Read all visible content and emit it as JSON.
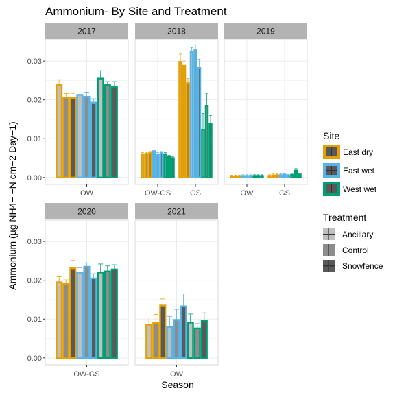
{
  "chart_data": {
    "type": "bar",
    "title": "Ammonium- By Site and Treatment",
    "xlabel": "Season",
    "ylabel": "Ammonium (µg NH4+ −N cm−2 Day−1)",
    "ylim": [
      -0.0018,
      0.0355
    ],
    "yticks": [
      0.0,
      0.01,
      0.02,
      0.03
    ],
    "ytick_labels": [
      "0.00",
      "0.01",
      "0.02",
      "0.03"
    ],
    "sites": [
      "East dry",
      "East wet",
      "West wet"
    ],
    "treatments": [
      "Ancillary",
      "Control",
      "Snowfence"
    ],
    "legend": {
      "site_title": "Site",
      "treatment_title": "Treatment",
      "site_colors": [
        "#E69F00",
        "#56B4E9",
        "#009E73"
      ],
      "treatment_fills": [
        "#bfbfbf",
        "#8c8c8c",
        "#595959"
      ]
    },
    "panels": [
      {
        "label": "2017",
        "seasons": [
          "OW"
        ],
        "values": [
          [
            [
              0.024,
              0.0208,
              0.0207
            ],
            [
              0.0215,
              0.021,
              0.0195
            ],
            [
              0.0257,
              0.024,
              0.0235
            ]
          ]
        ],
        "errors": [
          [
            [
              0.0012,
              0.0008,
              0.001
            ],
            [
              0.0008,
              0.001,
              0.0008
            ],
            [
              0.0018,
              0.0007,
              0.0012
            ]
          ]
        ]
      },
      {
        "label": "2018",
        "seasons": [
          "OW-GS",
          "GS"
        ],
        "values": [
          [
            [
              0.0062,
              0.0063,
              0.0065
            ],
            [
              0.007,
              0.0061,
              0.0065
            ],
            [
              0.0062,
              0.0055,
              0.0052
            ]
          ],
          [
            [
              0.03,
              0.029,
              0.0245
            ],
            [
              0.0325,
              0.033,
              0.0285
            ],
            [
              0.0125,
              0.0187,
              0.014
            ]
          ]
        ],
        "errors": [
          [
            [
              0.0002,
              0.0002,
              0.0002
            ],
            [
              0.0003,
              0.0003,
              0.0002
            ],
            [
              0.0002,
              0.0002,
              0.0002
            ]
          ],
          [
            [
              0.0018,
              0.001,
              0.001
            ],
            [
              0.001,
              0.0012,
              0.002
            ],
            [
              0.004,
              0.003,
              0.002
            ]
          ]
        ]
      },
      {
        "label": "2019",
        "seasons": [
          "OW",
          "GS"
        ],
        "values": [
          [
            [
              0.0005,
              0.0005,
              0.0005
            ],
            [
              0.0006,
              0.0006,
              0.0006
            ],
            [
              0.0006,
              0.0006,
              0.0006
            ]
          ],
          [
            [
              0.0006,
              0.0007,
              0.0008
            ],
            [
              0.0008,
              0.0009,
              0.0007
            ],
            [
              0.0009,
              0.002,
              0.001
            ]
          ]
        ],
        "errors": [
          [
            [
              0.0001,
              0.0001,
              0.0001
            ],
            [
              0.0001,
              0.0001,
              0.0001
            ],
            [
              0.0001,
              0.0001,
              0.0001
            ]
          ],
          [
            [
              0.0001,
              0.0002,
              0.0001
            ],
            [
              0.0002,
              0.0001,
              0.0001
            ],
            [
              0.0002,
              0.0003,
              0.0001
            ]
          ]
        ]
      },
      {
        "label": "2020",
        "seasons": [
          "OW-GS"
        ],
        "values": [
          [
            [
              0.0197,
              0.0193,
              0.0233
            ],
            [
              0.0222,
              0.0237,
              0.0207
            ],
            [
              0.0222,
              0.0225,
              0.023
            ]
          ]
        ],
        "errors": [
          [
            [
              0.0012,
              0.0008,
              0.0018
            ],
            [
              0.001,
              0.0008,
              0.001
            ],
            [
              0.002,
              0.0012,
              0.001
            ]
          ]
        ]
      },
      {
        "label": "2021",
        "seasons": [
          "OW"
        ],
        "values": [
          [
            [
              0.0088,
              0.0092,
              0.0137
            ],
            [
              0.0082,
              0.01,
              0.0135
            ],
            [
              0.0093,
              0.0078,
              0.0098
            ]
          ]
        ],
        "errors": [
          [
            [
              0.0015,
              0.002,
              0.0015
            ],
            [
              0.0025,
              0.0025,
              0.003
            ],
            [
              0.002,
              0.001,
              0.0018
            ]
          ]
        ]
      }
    ]
  }
}
